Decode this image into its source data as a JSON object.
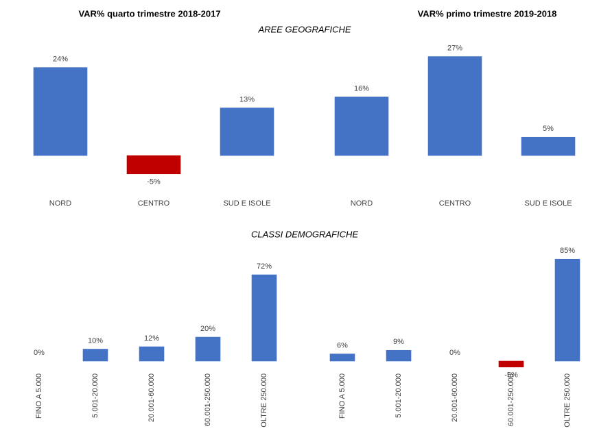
{
  "column_titles": [
    "VAR% quarto trimestre 2018-2017",
    "VAR% primo trimestre 2019-2018"
  ],
  "section_titles": [
    "AREE GEOGRAFICHE",
    "CLASSI DEMOGRAFICHE"
  ],
  "chart_data": [
    {
      "type": "bar",
      "categories": [
        "NORD",
        "CENTRO",
        "SUD E ISOLE"
      ],
      "values": [
        24,
        -5,
        13
      ],
      "value_labels": [
        "24%",
        "-5%",
        "13%"
      ],
      "colors": [
        "#4472c4",
        "#c00000",
        "#4472c4"
      ]
    },
    {
      "type": "bar",
      "categories": [
        "NORD",
        "CENTRO",
        "SUD E ISOLE"
      ],
      "values": [
        16,
        27,
        5
      ],
      "value_labels": [
        "16%",
        "27%",
        "5%"
      ],
      "colors": [
        "#4472c4",
        "#4472c4",
        "#4472c4"
      ]
    },
    {
      "type": "bar",
      "categories": [
        "FINO A  5.000",
        "5.001-20.000",
        "20.001-60.000",
        "60.001-250.000",
        "OLTRE 250.000"
      ],
      "values": [
        0,
        10,
        12,
        20,
        72
      ],
      "value_labels": [
        "0%",
        "10%",
        "12%",
        "20%",
        "72%"
      ],
      "colors": [
        "#4472c4",
        "#4472c4",
        "#4472c4",
        "#4472c4",
        "#4472c4"
      ]
    },
    {
      "type": "bar",
      "categories": [
        "FINO A  5.000",
        "5.001-20.000",
        "20.001-60.000",
        "60.001-250.000",
        "OLTRE 250.000"
      ],
      "values": [
        6,
        9,
        0,
        -5,
        85
      ],
      "value_labels": [
        "6%",
        "9%",
        "0%",
        "-5%",
        "85%"
      ],
      "colors": [
        "#4472c4",
        "#4472c4",
        "#4472c4",
        "#c00000",
        "#4472c4"
      ]
    }
  ]
}
